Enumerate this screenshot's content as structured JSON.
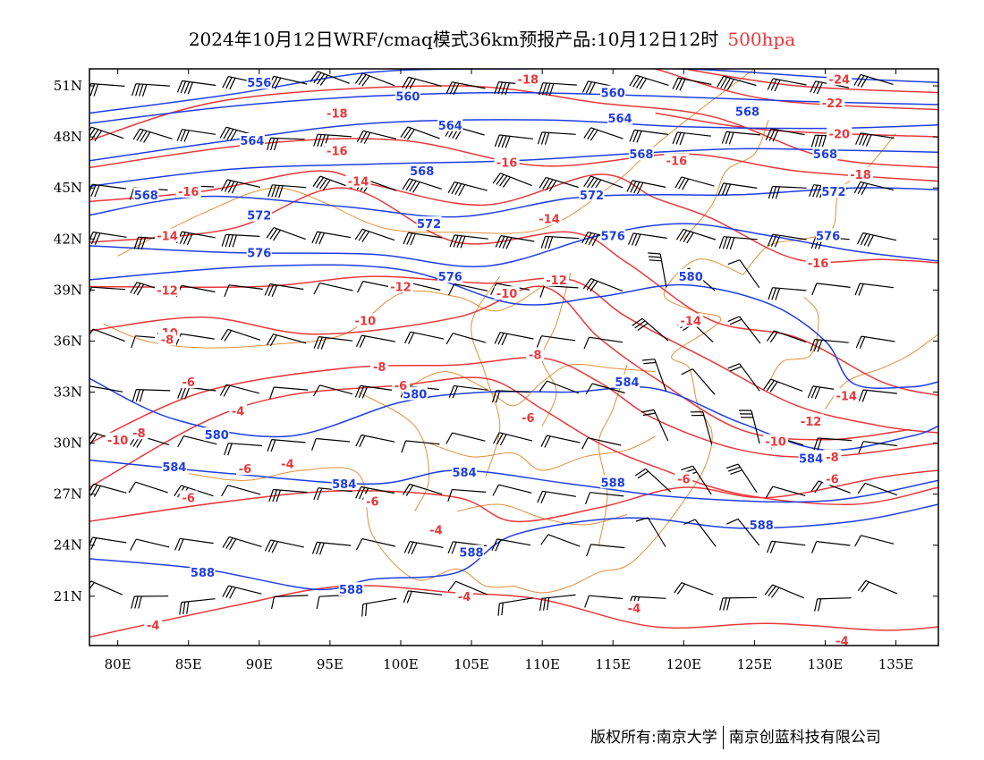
{
  "title": {
    "text": "2024年10月12日WRF/cmaq模式36km预报产品:10月12日12时",
    "level": "500hpa",
    "level_color": "#e8383b"
  },
  "colors": {
    "height_contour": "#1f3ee0",
    "temperature_contour": "#e8383b",
    "boundary": "#e0903a",
    "wind_barb": "#000000"
  },
  "axes": {
    "x_ticks": [
      "80E",
      "85E",
      "90E",
      "95E",
      "100E",
      "105E",
      "110E",
      "115E",
      "120E",
      "125E",
      "130E",
      "135E"
    ],
    "x_values": [
      80,
      85,
      90,
      95,
      100,
      105,
      110,
      115,
      120,
      125,
      130,
      135
    ],
    "y_ticks": [
      "21N",
      "24N",
      "27N",
      "30N",
      "33N",
      "36N",
      "39N",
      "42N",
      "45N",
      "48N",
      "51N"
    ],
    "y_values": [
      21,
      24,
      27,
      30,
      33,
      36,
      39,
      42,
      45,
      48,
      51
    ],
    "lon_range": [
      78,
      138
    ],
    "lat_range": [
      18.1,
      52
    ]
  },
  "height_contours": [
    {
      "label": "556",
      "points": [
        [
          78,
          49.4
        ],
        [
          88,
          50.5
        ],
        [
          98,
          51.8
        ],
        [
          108,
          52
        ],
        [
          120,
          52
        ],
        [
          130,
          51.5
        ],
        [
          138,
          51.2
        ]
      ]
    },
    {
      "label": "560",
      "points": [
        [
          78,
          48.8
        ],
        [
          88,
          49.8
        ],
        [
          98,
          50.4
        ],
        [
          108,
          50.6
        ],
        [
          118,
          50.4
        ],
        [
          128,
          50.1
        ],
        [
          138,
          49.9
        ]
      ]
    },
    {
      "label": "564",
      "points": [
        [
          78,
          46.6
        ],
        [
          88,
          47.8
        ],
        [
          98,
          48.8
        ],
        [
          110,
          49
        ],
        [
          120,
          48.6
        ],
        [
          130,
          48.5
        ],
        [
          138,
          48.7
        ]
      ]
    },
    {
      "label": "568",
      "points": [
        [
          78,
          45.1
        ],
        [
          88,
          46.1
        ],
        [
          98,
          46.4
        ],
        [
          108,
          46.6
        ],
        [
          116,
          47
        ],
        [
          124,
          47.3
        ],
        [
          132,
          47.2
        ],
        [
          138,
          47.1
        ]
      ]
    },
    {
      "label": "572",
      "points": [
        [
          78,
          43.4
        ],
        [
          86,
          44.5
        ],
        [
          96,
          43.9
        ],
        [
          104,
          43.3
        ],
        [
          112,
          44.4
        ],
        [
          118,
          44.6
        ],
        [
          124,
          44.6
        ],
        [
          132,
          45
        ],
        [
          138,
          44.9
        ]
      ]
    },
    {
      "label": "576",
      "points": [
        [
          78,
          41.6
        ],
        [
          88,
          41.2
        ],
        [
          98,
          41.1
        ],
        [
          106,
          40.4
        ],
        [
          114,
          42.2
        ],
        [
          120,
          42.9
        ],
        [
          126,
          42.2
        ],
        [
          132,
          41.3
        ],
        [
          138,
          40.7
        ]
      ]
    },
    {
      "label": "580",
      "points": [
        [
          78,
          39.6
        ],
        [
          90,
          40.4
        ],
        [
          100,
          40.2
        ],
        [
          108,
          38.2
        ],
        [
          114,
          38.6
        ],
        [
          120,
          39.3
        ],
        [
          126,
          38.2
        ],
        [
          130,
          36
        ],
        [
          132,
          33.5
        ],
        [
          136,
          33.3
        ],
        [
          138,
          33.6
        ]
      ]
    },
    {
      "label": "584",
      "points": [
        [
          78,
          33.8
        ],
        [
          84,
          31.4
        ],
        [
          92,
          30.4
        ],
        [
          100,
          32.4
        ],
        [
          106,
          33
        ],
        [
          112,
          33
        ],
        [
          118,
          33.2
        ],
        [
          124,
          31.2
        ],
        [
          130,
          29.6
        ],
        [
          136,
          30.4
        ],
        [
          138,
          31
        ]
      ]
    },
    {
      "label": "584",
      "points": [
        [
          78,
          29
        ],
        [
          88,
          28.2
        ],
        [
          98,
          27.6
        ],
        [
          104,
          28.4
        ],
        [
          112,
          27.6
        ],
        [
          120,
          26.8
        ],
        [
          130,
          26.6
        ],
        [
          138,
          27.8
        ]
      ]
    },
    {
      "label": "588",
      "points": [
        [
          78,
          23.2
        ],
        [
          86,
          22.6
        ],
        [
          94,
          21.4
        ],
        [
          98,
          22
        ],
        [
          104,
          22.4
        ],
        [
          108,
          24.6
        ],
        [
          116,
          25.6
        ],
        [
          124,
          25
        ],
        [
          132,
          25.4
        ],
        [
          138,
          26.4
        ]
      ]
    }
  ],
  "temperature_contours": [
    {
      "label": "-24",
      "points": [
        [
          120,
          52
        ],
        [
          128,
          51
        ],
        [
          138,
          50.6
        ]
      ]
    },
    {
      "label": "-22",
      "points": [
        [
          118,
          52
        ],
        [
          126,
          50.2
        ],
        [
          138,
          49.6
        ]
      ]
    },
    {
      "label": "-20",
      "points": [
        [
          118,
          49.4
        ],
        [
          126,
          48.4
        ],
        [
          138,
          48
        ]
      ]
    },
    {
      "label": "-18",
      "points": [
        [
          78,
          47.8
        ],
        [
          88,
          50.2
        ],
        [
          104,
          51
        ],
        [
          114,
          50
        ],
        [
          122,
          49.2
        ],
        [
          130,
          46.8
        ],
        [
          138,
          46.2
        ]
      ]
    },
    {
      "label": "-16",
      "points": [
        [
          78,
          46.2
        ],
        [
          90,
          47.6
        ],
        [
          100,
          47.8
        ],
        [
          110,
          46.3
        ],
        [
          120,
          47
        ],
        [
          128,
          46
        ],
        [
          138,
          45.4
        ]
      ]
    },
    {
      "label": "-16",
      "points": [
        [
          78,
          44.2
        ],
        [
          86,
          44.8
        ],
        [
          94,
          46
        ],
        [
          98,
          45.2
        ],
        [
          106,
          44
        ],
        [
          114,
          45.8
        ],
        [
          118,
          44.4
        ],
        [
          122,
          43.2
        ],
        [
          128,
          40.8
        ],
        [
          134,
          40.8
        ],
        [
          138,
          40.6
        ]
      ]
    },
    {
      "label": "-14",
      "points": [
        [
          78,
          41.8
        ],
        [
          88,
          42.6
        ],
        [
          96,
          45
        ],
        [
          104,
          41.8
        ],
        [
          112,
          42.4
        ],
        [
          116,
          40.6
        ],
        [
          122,
          37.2
        ],
        [
          128,
          36.2
        ],
        [
          134,
          33.6
        ],
        [
          138,
          32.8
        ]
      ]
    },
    {
      "label": "-12",
      "points": [
        [
          78,
          39.2
        ],
        [
          90,
          39.2
        ],
        [
          98,
          39.8
        ],
        [
          106,
          39.4
        ],
        [
          112,
          39.6
        ],
        [
          116,
          37.4
        ],
        [
          122,
          34.8
        ],
        [
          128,
          32.2
        ],
        [
          134,
          31
        ],
        [
          138,
          30.6
        ]
      ]
    },
    {
      "label": "-10",
      "points": [
        [
          78,
          36.6
        ],
        [
          86,
          37.4
        ],
        [
          94,
          36.4
        ],
        [
          104,
          37.4
        ],
        [
          110,
          39.2
        ],
        [
          114,
          36.2
        ],
        [
          118,
          33.8
        ],
        [
          124,
          30.8
        ],
        [
          130,
          30.2
        ],
        [
          136,
          30.8
        ]
      ]
    },
    {
      "label": "-8",
      "points": [
        [
          78,
          30
        ],
        [
          86,
          33
        ],
        [
          96,
          34.4
        ],
        [
          104,
          34.6
        ],
        [
          110,
          35
        ],
        [
          114,
          33.6
        ],
        [
          118,
          31.4
        ],
        [
          124,
          29.6
        ],
        [
          130,
          29.2
        ],
        [
          138,
          30
        ]
      ]
    },
    {
      "label": "-6",
      "points": [
        [
          78,
          27.4
        ],
        [
          86,
          31.2
        ],
        [
          92,
          32.8
        ],
        [
          100,
          33.4
        ],
        [
          106,
          33.8
        ],
        [
          110,
          32
        ],
        [
          114,
          30
        ],
        [
          118,
          28.6
        ],
        [
          124,
          27
        ],
        [
          132,
          26.4
        ],
        [
          138,
          27.4
        ]
      ]
    },
    {
      "label": "-6",
      "points": [
        [
          78,
          25.4
        ],
        [
          88,
          26.6
        ],
        [
          96,
          27.2
        ],
        [
          104,
          26.8
        ],
        [
          108,
          25.4
        ],
        [
          114,
          26.2
        ],
        [
          120,
          27.4
        ],
        [
          126,
          26.8
        ],
        [
          134,
          28
        ],
        [
          138,
          28.4
        ]
      ]
    },
    {
      "label": "-4",
      "points": [
        [
          78,
          18.6
        ],
        [
          88,
          20.4
        ],
        [
          96,
          21.6
        ],
        [
          104,
          21.2
        ],
        [
          110,
          20.8
        ],
        [
          118,
          19.2
        ],
        [
          126,
          19.4
        ],
        [
          134,
          19
        ],
        [
          138,
          19.2
        ]
      ]
    }
  ],
  "contour_labels": [
    {
      "text": "556",
      "lon": 90,
      "lat": 51.2,
      "kind": "h"
    },
    {
      "text": "560",
      "lon": 100.5,
      "lat": 50.4,
      "kind": "h"
    },
    {
      "text": "560",
      "lon": 115,
      "lat": 50.6,
      "kind": "h"
    },
    {
      "text": "568",
      "lon": 124.5,
      "lat": 49.5,
      "kind": "h"
    },
    {
      "text": "564",
      "lon": 103.5,
      "lat": 48.7,
      "kind": "h"
    },
    {
      "text": "564",
      "lon": 89.5,
      "lat": 47.8,
      "kind": "h"
    },
    {
      "text": "564",
      "lon": 115.5,
      "lat": 49.1,
      "kind": "h"
    },
    {
      "text": "568",
      "lon": 101.5,
      "lat": 46,
      "kind": "h"
    },
    {
      "text": "568",
      "lon": 117,
      "lat": 47,
      "kind": "h"
    },
    {
      "text": "568",
      "lon": 130,
      "lat": 47,
      "kind": "h"
    },
    {
      "text": "568",
      "lon": 82,
      "lat": 44.6,
      "kind": "h"
    },
    {
      "text": "572",
      "lon": 90,
      "lat": 43.4,
      "kind": "h"
    },
    {
      "text": "572",
      "lon": 102,
      "lat": 42.9,
      "kind": "h"
    },
    {
      "text": "572",
      "lon": 113.5,
      "lat": 44.6,
      "kind": "h"
    },
    {
      "text": "572",
      "lon": 130.6,
      "lat": 44.8,
      "kind": "h"
    },
    {
      "text": "576",
      "lon": 115,
      "lat": 42.2,
      "kind": "h"
    },
    {
      "text": "576",
      "lon": 130.2,
      "lat": 42.2,
      "kind": "h"
    },
    {
      "text": "576",
      "lon": 90,
      "lat": 41.2,
      "kind": "h"
    },
    {
      "text": "576",
      "lon": 103.5,
      "lat": 39.8,
      "kind": "h"
    },
    {
      "text": "580",
      "lon": 120.5,
      "lat": 39.8,
      "kind": "h"
    },
    {
      "text": "580",
      "lon": 101,
      "lat": 32.9,
      "kind": "h"
    },
    {
      "text": "580",
      "lon": 87,
      "lat": 30.5,
      "kind": "h"
    },
    {
      "text": "584",
      "lon": 116,
      "lat": 33.6,
      "kind": "h"
    },
    {
      "text": "584",
      "lon": 129,
      "lat": 29.1,
      "kind": "h"
    },
    {
      "text": "584",
      "lon": 84,
      "lat": 28.6,
      "kind": "h"
    },
    {
      "text": "584",
      "lon": 96,
      "lat": 27.6,
      "kind": "h"
    },
    {
      "text": "584",
      "lon": 104.5,
      "lat": 28.3,
      "kind": "h"
    },
    {
      "text": "588",
      "lon": 115,
      "lat": 27.7,
      "kind": "h"
    },
    {
      "text": "588",
      "lon": 125.5,
      "lat": 25.2,
      "kind": "h"
    },
    {
      "text": "588",
      "lon": 105,
      "lat": 23.6,
      "kind": "h"
    },
    {
      "text": "588",
      "lon": 86,
      "lat": 22.4,
      "kind": "h"
    },
    {
      "text": "588",
      "lon": 96.5,
      "lat": 21.4,
      "kind": "h"
    },
    {
      "text": "-24",
      "lon": 131,
      "lat": 51.4,
      "kind": "t"
    },
    {
      "text": "-22",
      "lon": 130.5,
      "lat": 50,
      "kind": "t"
    },
    {
      "text": "-20",
      "lon": 131,
      "lat": 48.2,
      "kind": "t"
    },
    {
      "text": "-18",
      "lon": 109,
      "lat": 51.4,
      "kind": "t"
    },
    {
      "text": "-18",
      "lon": 95.5,
      "lat": 49.4,
      "kind": "t"
    },
    {
      "text": "-18",
      "lon": 132.5,
      "lat": 45.8,
      "kind": "t"
    },
    {
      "text": "-16",
      "lon": 95.5,
      "lat": 47.2,
      "kind": "t"
    },
    {
      "text": "-16",
      "lon": 107.5,
      "lat": 46.5,
      "kind": "t"
    },
    {
      "text": "-16",
      "lon": 119.5,
      "lat": 46.6,
      "kind": "t"
    },
    {
      "text": "-16",
      "lon": 85,
      "lat": 44.8,
      "kind": "t"
    },
    {
      "text": "-16",
      "lon": 129.5,
      "lat": 40.6,
      "kind": "t"
    },
    {
      "text": "-14",
      "lon": 97,
      "lat": 45.4,
      "kind": "t"
    },
    {
      "text": "-14",
      "lon": 110.5,
      "lat": 43.2,
      "kind": "t"
    },
    {
      "text": "-14",
      "lon": 83.5,
      "lat": 42.2,
      "kind": "t"
    },
    {
      "text": "-14",
      "lon": 120.5,
      "lat": 37.2,
      "kind": "t"
    },
    {
      "text": "-14",
      "lon": 131.5,
      "lat": 32.8,
      "kind": "t"
    },
    {
      "text": "-12",
      "lon": 111,
      "lat": 39.6,
      "kind": "t"
    },
    {
      "text": "-12",
      "lon": 100,
      "lat": 39.2,
      "kind": "t"
    },
    {
      "text": "-12",
      "lon": 83.5,
      "lat": 39,
      "kind": "t"
    },
    {
      "text": "-12",
      "lon": 129,
      "lat": 31.3,
      "kind": "t"
    },
    {
      "text": "-10",
      "lon": 107.5,
      "lat": 38.8,
      "kind": "t"
    },
    {
      "text": "-10",
      "lon": 97.5,
      "lat": 37.2,
      "kind": "t"
    },
    {
      "text": "-10",
      "lon": 83.5,
      "lat": 36.5,
      "kind": "t"
    },
    {
      "text": "-10",
      "lon": 126.5,
      "lat": 30.1,
      "kind": "t"
    },
    {
      "text": "-10",
      "lon": 80,
      "lat": 30.2,
      "kind": "t"
    },
    {
      "text": "-8",
      "lon": 83.5,
      "lat": 36.1,
      "kind": "t"
    },
    {
      "text": "-8",
      "lon": 98.5,
      "lat": 34.5,
      "kind": "t"
    },
    {
      "text": "-8",
      "lon": 109.5,
      "lat": 35.2,
      "kind": "t"
    },
    {
      "text": "-8",
      "lon": 130.5,
      "lat": 29.2,
      "kind": "t"
    },
    {
      "text": "-8",
      "lon": 81.5,
      "lat": 30.6,
      "kind": "t"
    },
    {
      "text": "-6",
      "lon": 85,
      "lat": 33.6,
      "kind": "t"
    },
    {
      "text": "-6",
      "lon": 100,
      "lat": 33.4,
      "kind": "t"
    },
    {
      "text": "-6",
      "lon": 109,
      "lat": 31.5,
      "kind": "t"
    },
    {
      "text": "-6",
      "lon": 89,
      "lat": 28.5,
      "kind": "t"
    },
    {
      "text": "-6",
      "lon": 85,
      "lat": 26.8,
      "kind": "t"
    },
    {
      "text": "-6",
      "lon": 98,
      "lat": 26.6,
      "kind": "t"
    },
    {
      "text": "-6",
      "lon": 120,
      "lat": 27.9,
      "kind": "t"
    },
    {
      "text": "-6",
      "lon": 130.5,
      "lat": 27.9,
      "kind": "t"
    },
    {
      "text": "-4",
      "lon": 88.5,
      "lat": 31.9,
      "kind": "t"
    },
    {
      "text": "-4",
      "lon": 92,
      "lat": 28.8,
      "kind": "t"
    },
    {
      "text": "-4",
      "lon": 102.5,
      "lat": 24.9,
      "kind": "t"
    },
    {
      "text": "-4",
      "lon": 104.5,
      "lat": 21,
      "kind": "t"
    },
    {
      "text": "-4",
      "lon": 116.5,
      "lat": 20.3,
      "kind": "t"
    },
    {
      "text": "-4",
      "lon": 82.5,
      "lat": 19.3,
      "kind": "t"
    },
    {
      "text": "-4",
      "lon": 131.2,
      "lat": 18.4,
      "kind": "t"
    }
  ],
  "footer": {
    "copyright": "版权所有:南京大学",
    "company": "南京创蓝科技有限公司"
  }
}
